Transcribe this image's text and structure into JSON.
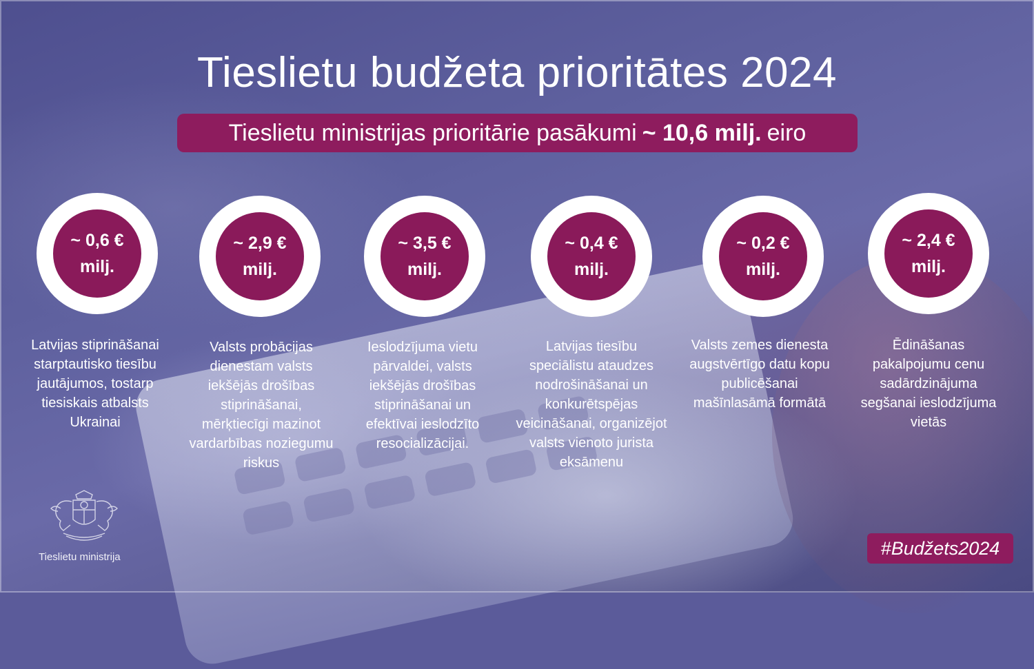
{
  "title": "Tieslietu budžeta prioritātes 2024",
  "subtitle": {
    "prefix": "Tieslietu ministrijas prioritārie pasākumi",
    "amount": "~ 10,6 milj.",
    "suffix": "eiro"
  },
  "items": [
    {
      "amount": "~ 0,6 €",
      "unit": "milj.",
      "description": "Latvijas stiprināšanai starptautisko tiesību jautājumos, tostarp tiesiskais atbalsts Ukrainai"
    },
    {
      "amount": "~ 2,9 €",
      "unit": "milj.",
      "description": "Valsts probācijas dienestam valsts iekšējās drošības stiprināšanai, mērķtiecīgi mazinot vardarbības noziegumu riskus"
    },
    {
      "amount": "~ 3,5 €",
      "unit": "milj.",
      "description": "Ieslodzījuma vietu pārvaldei, valsts iekšējās drošības stiprināšanai un efektīvai ieslodzīto resocializācijai."
    },
    {
      "amount": "~ 0,4 €",
      "unit": "milj.",
      "description": "Latvijas tiesību speciālistu ataudzes nodrošināšanai un konkurētspējas veicināšanai, organizējot valsts vienoto jurista eksāmenu"
    },
    {
      "amount": "~ 0,2 €",
      "unit": "milj.",
      "description": "Valsts zemes dienesta augstvērtīgo datu kopu publicēšanai mašīnlasāmā formātā"
    },
    {
      "amount": "~ 2,4 €",
      "unit": "milj.",
      "description": "Ēdināšanas pakalpojumu cenu sadārdzinājuma segšanai ieslodzījuma vietās"
    }
  ],
  "logo_text": "Tieslietu ministrija",
  "hashtag": "#Budžets2024",
  "colors": {
    "accent": "#8e1c5e",
    "background": "#5b5b9a",
    "ring": "#ffffff",
    "text": "#ffffff"
  }
}
